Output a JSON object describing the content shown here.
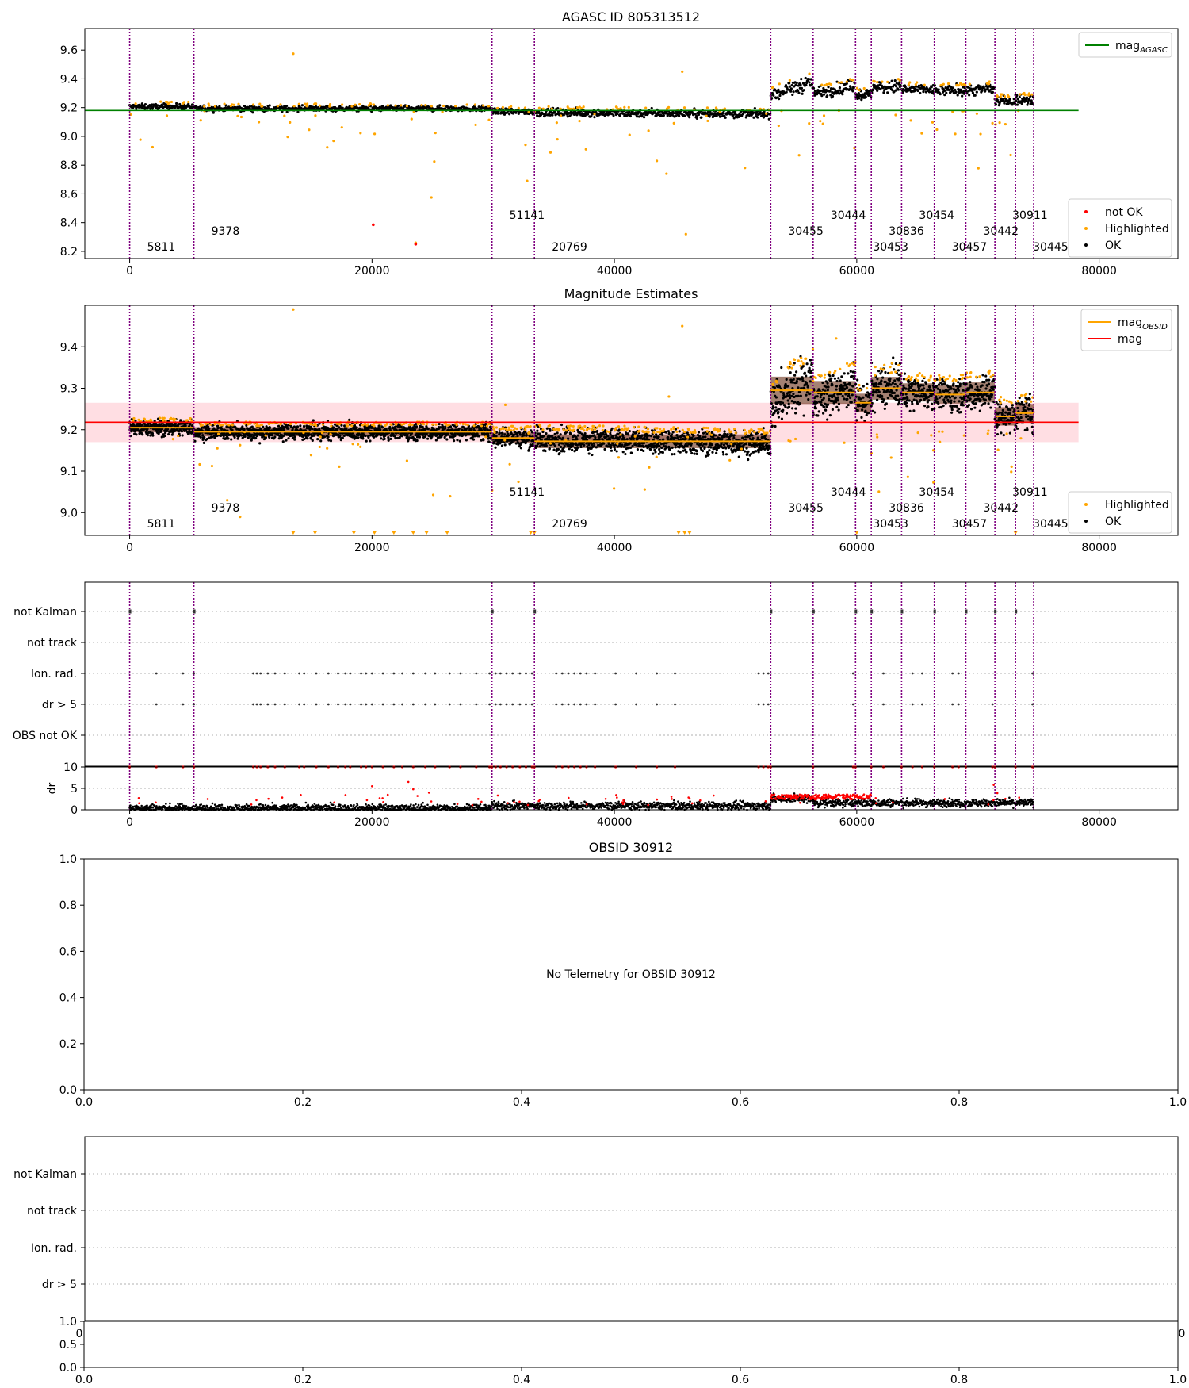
{
  "figure": {
    "width": 1500,
    "height": 1750
  },
  "colors": {
    "ok": "#000000",
    "highlighted": "#FFA500",
    "not_ok": "#FF0000",
    "agasc_line": "#008000",
    "mag_line": "#FF0000",
    "obsid_line": "#FFA500",
    "obs_boundary": "#800080",
    "band": "#FFB6C1",
    "grid": "#b0b0b0"
  },
  "chart_data": [
    {
      "id": "agasc",
      "type": "scatter",
      "title": "AGASC ID 805313512",
      "xlim": [
        -3700,
        86500
      ],
      "ylim": [
        8.15,
        9.75
      ],
      "x_ticks": [
        0,
        20000,
        40000,
        60000,
        80000
      ],
      "y_ticks": [
        8.2,
        8.4,
        8.6,
        8.8,
        9.0,
        9.2,
        9.4,
        9.6
      ],
      "y_tick_labels": [
        "8.2",
        "8.4",
        "8.6",
        "8.8",
        "9.0",
        "9.2",
        "9.4",
        "9.6"
      ],
      "hline": {
        "y": 9.18,
        "x_range": [
          -3700,
          78300
        ],
        "label": "mag",
        "label_sub": "AGASC"
      },
      "legend_top": [
        {
          "label": "mag",
          "sub": "AGASC",
          "kind": "line",
          "color": "#008000"
        }
      ],
      "legend_bottom": [
        {
          "label": "not OK",
          "kind": "dot",
          "color": "#FF0000"
        },
        {
          "label": "Highlighted",
          "kind": "dot",
          "color": "#FFA500"
        },
        {
          "label": "OK",
          "kind": "dot",
          "color": "#000000"
        }
      ]
    },
    {
      "id": "estimates",
      "type": "scatter",
      "title": "Magnitude Estimates",
      "xlim": [
        -3700,
        86500
      ],
      "ylim": [
        8.945,
        9.5
      ],
      "x_ticks": [
        0,
        20000,
        40000,
        60000,
        80000
      ],
      "y_ticks": [
        9.0,
        9.1,
        9.2,
        9.3,
        9.4
      ],
      "y_tick_labels": [
        "9.0",
        "9.1",
        "9.2",
        "9.3",
        "9.4"
      ],
      "mag_line": {
        "y": 9.218,
        "band": [
          9.17,
          9.265
        ],
        "x_range": [
          -3700,
          78300
        ]
      },
      "legend_top": [
        {
          "label": "mag",
          "sub": "OBSID",
          "kind": "line",
          "color": "#FFA500"
        },
        {
          "label": "mag",
          "sub": "",
          "kind": "line",
          "color": "#FF0000"
        }
      ],
      "legend_bottom": [
        {
          "label": "Highlighted",
          "kind": "dot",
          "color": "#FFA500"
        },
        {
          "label": "OK",
          "kind": "dot",
          "color": "#000000"
        }
      ]
    },
    {
      "id": "flags",
      "type": "scatter",
      "xlim": [
        -3700,
        86500
      ],
      "y_categories": [
        "not Kalman",
        "not track",
        "Ion. rad.",
        "dr > 5",
        "OBS not OK"
      ],
      "dr_ylim": [
        0,
        10
      ],
      "dr_ticks": [
        0,
        5,
        10
      ],
      "dr_label": "dr",
      "x_ticks": [
        0,
        20000,
        40000,
        60000,
        80000
      ]
    },
    {
      "id": "obsid",
      "type": "scatter",
      "title": "OBSID 30912",
      "message": "No Telemetry for OBSID 30912",
      "xlim": [
        0,
        1
      ],
      "ylim": [
        0,
        1
      ],
      "x_ticks": [
        0,
        0.2,
        0.4,
        0.6,
        0.8,
        1.0
      ],
      "x_tick_labels": [
        "0.0",
        "0.2",
        "0.4",
        "0.6",
        "0.8",
        "1.0"
      ],
      "y_ticks": [
        0,
        0.2,
        0.4,
        0.6,
        0.8,
        1.0
      ],
      "y_tick_labels": [
        "0.0",
        "0.2",
        "0.4",
        "0.6",
        "0.8",
        "1.0"
      ]
    },
    {
      "id": "obsid_flags",
      "type": "scatter",
      "y_categories": [
        "not Kalman",
        "not track",
        "Ion. rad.",
        "dr > 5"
      ],
      "overlap_tick_labels": [
        "0",
        "0"
      ],
      "x_ticks": [
        0,
        0.2,
        0.4,
        0.6,
        0.8,
        1.0
      ],
      "x_tick_labels": [
        "0.0",
        "0.2",
        "0.4",
        "0.6",
        "0.8",
        "1.0"
      ],
      "y_ticks": [
        0,
        0.5,
        1.0
      ],
      "y_tick_labels": [
        "0.0",
        "0.5",
        "1.0"
      ]
    }
  ],
  "observations": [
    {
      "obsid": "5811",
      "start": 0,
      "end": 5300,
      "row": 0,
      "mag": 9.205,
      "spread": 0.01,
      "drift": 0
    },
    {
      "obsid": "9378",
      "start": 5300,
      "end": 29900,
      "row": 1,
      "mag": 9.195,
      "spread": 0.01,
      "drift": 0
    },
    {
      "obsid": "51141",
      "start": 29900,
      "end": 33400,
      "row": 2,
      "mag": 9.18,
      "spread": 0.012,
      "drift": 0
    },
    {
      "obsid": "20769",
      "start": 33400,
      "end": 52900,
      "row": 0,
      "mag": 9.172,
      "spread": 0.015,
      "drift": -0.01
    },
    {
      "obsid": "30455",
      "start": 52900,
      "end": 56400,
      "row": 1,
      "mag": 9.295,
      "spread": 0.03,
      "drift": 0.08
    },
    {
      "obsid": "30444",
      "start": 56400,
      "end": 59900,
      "row": 2,
      "mag": 9.29,
      "spread": 0.025,
      "drift": 0.04
    },
    {
      "obsid": "30453",
      "start": 59900,
      "end": 61200,
      "row": 0,
      "mag": 9.265,
      "spread": 0.02,
      "drift": 0
    },
    {
      "obsid": "30836",
      "start": 61200,
      "end": 63700,
      "row": 1,
      "mag": 9.3,
      "spread": 0.025,
      "drift": 0.01
    },
    {
      "obsid": "30454",
      "start": 63700,
      "end": 66400,
      "row": 2,
      "mag": 9.29,
      "spread": 0.02,
      "drift": 0
    },
    {
      "obsid": "30457",
      "start": 66400,
      "end": 69000,
      "row": 0,
      "mag": 9.285,
      "spread": 0.02,
      "drift": 0
    },
    {
      "obsid": "30442",
      "start": 69000,
      "end": 71400,
      "row": 1,
      "mag": 9.29,
      "spread": 0.022,
      "drift": 0.01
    },
    {
      "obsid": "30911",
      "start": 71400,
      "end": 73100,
      "row": 2,
      "mag": 9.232,
      "spread": 0.02,
      "drift": 0
    },
    {
      "obsid": "30445",
      "start": 73100,
      "end": 74600,
      "row": 0,
      "mag": 9.24,
      "spread": 0.02,
      "drift": 0
    }
  ],
  "boundaries": [
    0,
    5300,
    29900,
    33400,
    52900,
    56400,
    59900,
    61200,
    63700,
    66400,
    69000,
    71400,
    73100,
    74600
  ],
  "flag_ticks": {
    "not_kalman": [
      0,
      5300,
      29900,
      33400,
      52900,
      56400,
      59900,
      61200,
      63700,
      66400,
      69000,
      71400,
      73100
    ],
    "ion_rad": [
      2200,
      4400,
      5300,
      10200,
      10500,
      10800,
      11400,
      12000,
      12800,
      14000,
      14400,
      15400,
      16400,
      17200,
      17800,
      18200,
      19100,
      19500,
      20000,
      20900,
      21800,
      22500,
      23400,
      24400,
      25200,
      26400,
      27300,
      28600,
      29700,
      30200,
      30600,
      31100,
      31600,
      32200,
      32700,
      33200,
      35200,
      35700,
      36200,
      36700,
      37200,
      37700,
      38400,
      40100,
      41800,
      43500,
      45000,
      51900,
      52300,
      52700,
      59700,
      62200,
      64600,
      65400,
      67900,
      68400,
      74500
    ],
    "dr5": [
      2200,
      4400,
      5300,
      10200,
      10500,
      10800,
      11400,
      12000,
      12800,
      14000,
      14400,
      15400,
      16400,
      17200,
      17800,
      18200,
      19100,
      19500,
      20000,
      20900,
      21800,
      22500,
      23400,
      24400,
      25200,
      26400,
      27300,
      28600,
      29700,
      30200,
      30600,
      31100,
      31600,
      32200,
      32700,
      33200,
      35200,
      35700,
      36200,
      36700,
      37200,
      37700,
      38400,
      40100,
      41800,
      43500,
      45000,
      51900,
      52300,
      52700,
      59700,
      62200,
      64600,
      65400,
      67900,
      68400,
      71200,
      74500
    ]
  }
}
